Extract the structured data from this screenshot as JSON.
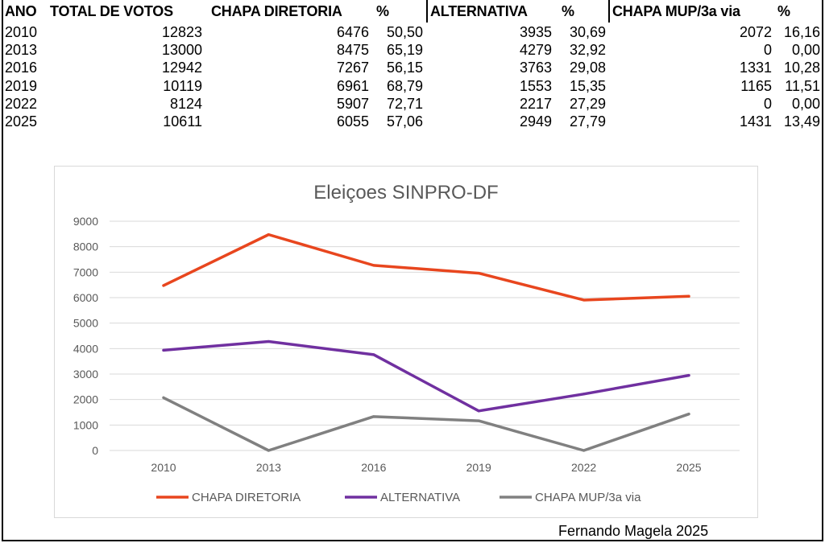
{
  "table": {
    "headers": [
      "ANO",
      "TOTAL DE VOTOS",
      "CHAPA DIRETORIA",
      "%",
      "ALTERNATIVA",
      "%",
      "CHAPA MUP/3a via",
      "%"
    ],
    "rows": [
      [
        "2010",
        "12823",
        "6476",
        "50,50",
        "3935",
        "30,69",
        "2072",
        "16,16"
      ],
      [
        "2013",
        "13000",
        "8475",
        "65,19",
        "4279",
        "32,92",
        "0",
        "0,00"
      ],
      [
        "2016",
        "12942",
        "7267",
        "56,15",
        "3763",
        "29,08",
        "1331",
        "10,28"
      ],
      [
        "2019",
        "10119",
        "6961",
        "68,79",
        "1553",
        "15,35",
        "1165",
        "11,51"
      ],
      [
        "2022",
        "8124",
        "5907",
        "72,71",
        "2217",
        "27,29",
        "0",
        "0,00"
      ],
      [
        "2025",
        "10611",
        "6055",
        "57,06",
        "2949",
        "27,79",
        "1431",
        "13,49"
      ]
    ]
  },
  "chart_data": {
    "type": "line",
    "title": "Eleiçoes SINPRO-DF",
    "categories": [
      "2010",
      "2013",
      "2016",
      "2019",
      "2022",
      "2025"
    ],
    "series": [
      {
        "name": "CHAPA DIRETORIA",
        "color": "#e8461e",
        "values": [
          6476,
          8475,
          7267,
          6961,
          5907,
          6055
        ]
      },
      {
        "name": "ALTERNATIVA",
        "color": "#7030a0",
        "values": [
          3935,
          4279,
          3763,
          1553,
          2217,
          2949
        ]
      },
      {
        "name": "CHAPA MUP/3a via",
        "color": "#808080",
        "values": [
          2072,
          0,
          1331,
          1165,
          0,
          1431
        ]
      }
    ],
    "yticks": [
      "0",
      "1000",
      "2000",
      "3000",
      "4000",
      "5000",
      "6000",
      "7000",
      "8000",
      "9000"
    ],
    "ylim": [
      0,
      9000
    ],
    "grid": true,
    "legend": "bottom",
    "xlabel": "",
    "ylabel": ""
  },
  "credit": "Fernando Magela 2025"
}
